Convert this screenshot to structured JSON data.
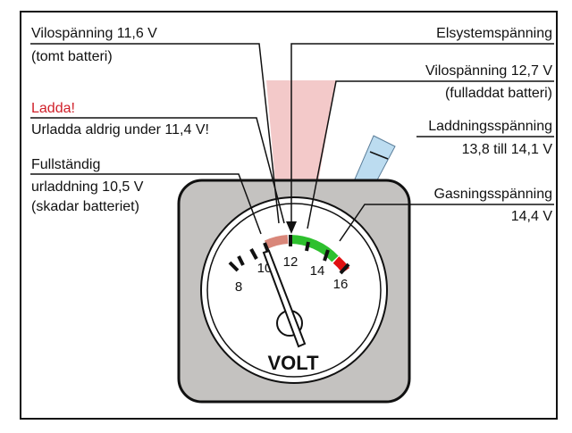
{
  "labels": {
    "left": {
      "rest_empty_1": "Vilospänning 11,6 V",
      "rest_empty_2": "(tomt batteri)",
      "charge_warning": "Ladda!",
      "never_below": "Urladda aldrig under 11,4 V!",
      "full_discharge_1": "Fullständig",
      "full_discharge_2": "urladdning 10,5 V",
      "full_discharge_3": "(skadar batteriet)"
    },
    "right": {
      "system_voltage": "Elsystemspänning",
      "rest_full_1": "Vilospänning 12,7 V",
      "rest_full_2": "(fulladdat batteri)",
      "charging_1": "Laddningsspänning",
      "charging_2": "13,8 till 14,1 V",
      "gassing_1": "Gasningsspänning",
      "gassing_2": "14,4 V"
    }
  },
  "gauge": {
    "unit": "VOLT",
    "scale_labels": [
      "8",
      "10",
      "12",
      "14",
      "16"
    ],
    "needle_value": 10.2
  },
  "colors": {
    "warning_text": "#d0202a",
    "charge_zone": "#2ec02e",
    "overcharge_zone": "#e01010",
    "discharge_zone": "#d9877a",
    "pink_band": "#f3c9c9",
    "blue_band": "#bcdcf0",
    "housing": "#c4c2c0"
  }
}
